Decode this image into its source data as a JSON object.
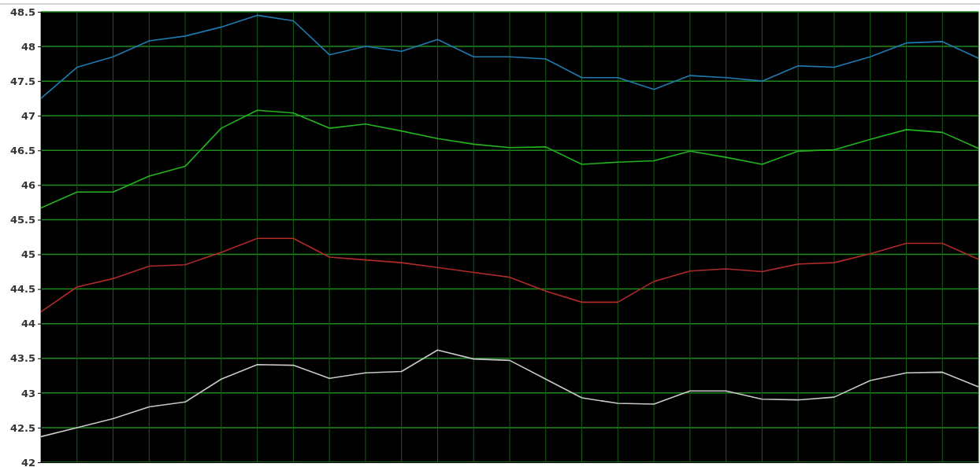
{
  "chart_data": {
    "type": "line",
    "categories": [
      null,
      null,
      null,
      null,
      null,
      null,
      null,
      null,
      null,
      null,
      null,
      null,
      null,
      null,
      null,
      null,
      null,
      null,
      null,
      null,
      null,
      null,
      null,
      null,
      null,
      null,
      null
    ],
    "series": [
      {
        "color": "#1f7ab0",
        "values": [
          47.25,
          47.7,
          47.85,
          48.08,
          48.15,
          48.28,
          48.45,
          48.37,
          47.88,
          48.0,
          47.93,
          48.1,
          47.85,
          47.85,
          47.82,
          47.55,
          47.55,
          47.38,
          47.58,
          47.55,
          47.5,
          47.72,
          47.7,
          47.85,
          48.05,
          48.07,
          47.83
        ]
      },
      {
        "color": "#22b41e",
        "values": [
          45.67,
          45.9,
          45.9,
          46.13,
          46.27,
          46.82,
          47.08,
          47.04,
          46.82,
          46.88,
          46.78,
          46.67,
          46.59,
          46.54,
          46.55,
          46.3,
          46.33,
          46.35,
          46.49,
          46.4,
          46.3,
          46.49,
          46.51,
          46.66,
          46.8,
          46.76,
          46.53
        ]
      },
      {
        "color": "#b02a2a",
        "values": [
          44.17,
          44.53,
          44.65,
          44.83,
          44.85,
          45.03,
          45.23,
          45.23,
          44.96,
          44.92,
          44.88,
          44.81,
          44.74,
          44.67,
          44.47,
          44.31,
          44.31,
          44.61,
          44.76,
          44.79,
          44.75,
          44.86,
          44.88,
          45.01,
          45.16,
          45.16,
          44.93
        ]
      },
      {
        "color": "#c8c8c8",
        "values": [
          42.37,
          42.5,
          42.63,
          42.8,
          42.87,
          43.2,
          43.41,
          43.4,
          43.21,
          43.29,
          43.31,
          43.62,
          43.49,
          43.47,
          43.2,
          42.93,
          42.85,
          42.84,
          43.03,
          43.03,
          42.91,
          42.9,
          42.94,
          43.18,
          43.29,
          43.3,
          43.09
        ]
      }
    ],
    "ylim": [
      42,
      48.5
    ],
    "yticks": [
      42,
      42.5,
      43,
      43.5,
      44,
      44.5,
      45,
      45.5,
      46,
      46.5,
      47,
      47.5,
      48,
      48.5
    ],
    "grid": true,
    "tick_labels": "y"
  }
}
